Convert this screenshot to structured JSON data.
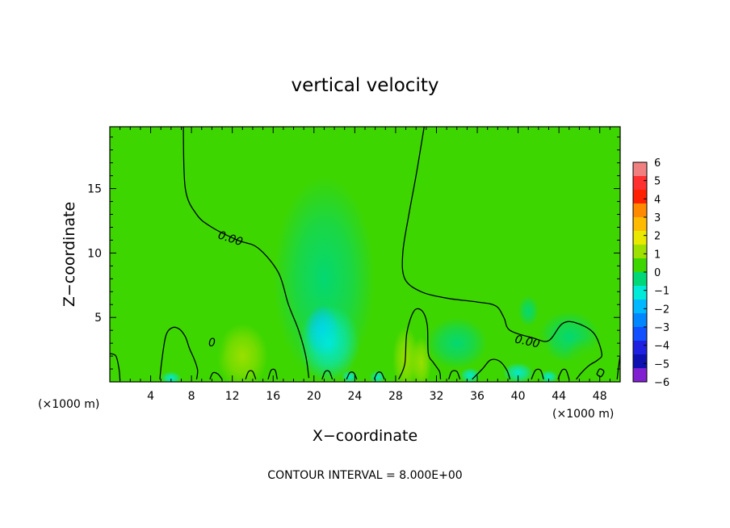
{
  "chart_data": {
    "type": "heatmap",
    "title": "vertical velocity",
    "xlabel": "X−coordinate",
    "ylabel": "Z−coordinate",
    "x_unit": "(×1000 m)",
    "y_unit": "(×1000 m)",
    "xlim": [
      0,
      50
    ],
    "ylim": [
      0,
      19.8
    ],
    "x_ticks": [
      4,
      8,
      12,
      16,
      20,
      24,
      28,
      32,
      36,
      40,
      44,
      48
    ],
    "x_tick_labels": [
      "4",
      "8",
      "12",
      "16",
      "20",
      "24",
      "28",
      "32",
      "36",
      "40",
      "44",
      "48"
    ],
    "y_ticks": [
      5,
      10,
      15
    ],
    "y_tick_labels": [
      "5",
      "10",
      "15"
    ],
    "colorbar": {
      "min": -6,
      "max": 6,
      "labels": [
        "6",
        "5",
        "4",
        "3",
        "2",
        "1",
        "0",
        "−1",
        "−2",
        "−3",
        "−4",
        "−5",
        "−6"
      ],
      "colors": [
        "#f08080",
        "#ff3030",
        "#ff2000",
        "#ff8a00",
        "#ffbb00",
        "#e8e800",
        "#9ee000",
        "#3ed600",
        "#00d878",
        "#00eada",
        "#00b8ff",
        "#0086ff",
        "#1050ff",
        "#2020e0",
        "#1010b0",
        "#8020d0"
      ],
      "note": "color sequence from top (positive) to bottom (negative)"
    },
    "contour_interval_text": "CONTOUR INTERVAL = 8.000E+00",
    "contour_labels": [
      "0.00",
      "0.00",
      "0"
    ],
    "blobs": [
      {
        "x": 16.5,
        "z": 7.5,
        "rx": 5,
        "rz": 4,
        "value": 0.5
      },
      {
        "x": 13,
        "z": 2,
        "rx": 2.5,
        "rz": 2.5,
        "value": 1.3
      },
      {
        "x": 10,
        "z": 3,
        "rx": 1.5,
        "rz": 2,
        "value": 0.7
      },
      {
        "x": 6.5,
        "z": 1,
        "rx": 2,
        "rz": 1.2,
        "value": 0.4
      },
      {
        "x": 29,
        "z": 1.8,
        "rx": 1.3,
        "rz": 2.5,
        "value": 1.0
      },
      {
        "x": 30.5,
        "z": 1.5,
        "rx": 1,
        "rz": 2,
        "value": 0.8
      },
      {
        "x": 16,
        "z": 1,
        "rx": 1,
        "rz": 1.2,
        "value": 0.7
      },
      {
        "x": 21,
        "z": 8,
        "rx": 5,
        "rz": 8,
        "value": -0.6
      },
      {
        "x": 20.8,
        "z": 4,
        "rx": 1.7,
        "rz": 2,
        "value": -1.8
      },
      {
        "x": 21.5,
        "z": 3,
        "rx": 3,
        "rz": 3,
        "value": -0.8
      },
      {
        "x": 41,
        "z": 5.5,
        "rx": 1,
        "rz": 1.2,
        "value": -0.5
      },
      {
        "x": 40,
        "z": 0.7,
        "rx": 1.5,
        "rz": 0.8,
        "value": -1.2
      },
      {
        "x": 34,
        "z": 3,
        "rx": 3,
        "rz": 2,
        "value": -0.4
      },
      {
        "x": 6,
        "z": 0.3,
        "rx": 1,
        "rz": 0.5,
        "value": -1.1
      },
      {
        "x": 23.5,
        "z": 0.4,
        "rx": 0.8,
        "rz": 0.5,
        "value": -1.0
      },
      {
        "x": 26.2,
        "z": 0.4,
        "rx": 0.8,
        "rz": 0.5,
        "value": -1.0
      },
      {
        "x": 35.3,
        "z": 0.5,
        "rx": 1.0,
        "rz": 0.6,
        "value": -1.4
      },
      {
        "x": 43,
        "z": 0.4,
        "rx": 0.9,
        "rz": 0.5,
        "value": -1.1
      },
      {
        "x": 45,
        "z": 3.5,
        "rx": 3,
        "rz": 2,
        "value": -0.35
      },
      {
        "x": 46.5,
        "z": 1.8,
        "rx": 2,
        "rz": 1.6,
        "value": 0.4
      },
      {
        "x": 42,
        "z": 2.5,
        "rx": 1.5,
        "rz": 1.5,
        "value": 0.3
      },
      {
        "x": 25,
        "z": 1.2,
        "rx": 1.5,
        "rz": 1.3,
        "value": 0.3
      },
      {
        "x": 3,
        "z": 1.5,
        "rx": 3,
        "rz": 1.8,
        "value": 0.25
      }
    ],
    "contours": [
      [
        [
          7.2,
          19.8
        ],
        [
          7.4,
          15
        ],
        [
          8.5,
          13
        ],
        [
          10,
          12
        ],
        [
          12.5,
          11
        ],
        [
          14.5,
          10.4
        ],
        [
          16.5,
          8.5
        ],
        [
          17.5,
          6
        ],
        [
          18.5,
          4
        ],
        [
          19.2,
          2
        ],
        [
          19.5,
          0.3
        ]
      ],
      [
        [
          30.8,
          19.8
        ],
        [
          30,
          16
        ],
        [
          29.3,
          13
        ],
        [
          28.7,
          10
        ],
        [
          28.9,
          8
        ],
        [
          30.5,
          7
        ],
        [
          33,
          6.5
        ],
        [
          36,
          6.2
        ],
        [
          37.8,
          5.9
        ],
        [
          38.6,
          5
        ],
        [
          39.2,
          4
        ],
        [
          41.5,
          3.4
        ],
        [
          43,
          3.2
        ],
        [
          44.3,
          4.5
        ],
        [
          45.6,
          4.6
        ],
        [
          47.4,
          3.8
        ],
        [
          48.2,
          2.2
        ],
        [
          47.8,
          1.7
        ],
        [
          47,
          1.3
        ],
        [
          46.2,
          0.7
        ],
        [
          45.7,
          0.2
        ]
      ],
      [
        [
          4.9,
          0.2
        ],
        [
          5.1,
          1.7
        ],
        [
          5.5,
          3.6
        ],
        [
          6.1,
          4.2
        ],
        [
          6.8,
          4.1
        ],
        [
          7.4,
          3.5
        ],
        [
          7.8,
          2.6
        ],
        [
          8.3,
          1.7
        ],
        [
          8.6,
          0.9
        ],
        [
          8.5,
          0.2
        ]
      ],
      [
        [
          0,
          2.2
        ],
        [
          0.6,
          2.0
        ],
        [
          0.9,
          1.0
        ],
        [
          1.0,
          0.1
        ]
      ],
      [
        [
          28.3,
          0.2
        ],
        [
          28.9,
          1.4
        ],
        [
          29.1,
          3.8
        ],
        [
          29.8,
          5.5
        ],
        [
          30.6,
          5.5
        ],
        [
          31.1,
          4.4
        ],
        [
          31.2,
          2.2
        ],
        [
          31.7,
          1.5
        ],
        [
          32.3,
          0.8
        ],
        [
          32.4,
          0.2
        ]
      ],
      [
        [
          35.5,
          0.2
        ],
        [
          36.5,
          1.0
        ],
        [
          37.3,
          1.7
        ],
        [
          38.2,
          1.6
        ],
        [
          38.9,
          0.9
        ],
        [
          39.2,
          0.2
        ]
      ],
      [
        [
          9.8,
          0.2
        ],
        [
          10.1,
          0.7
        ],
        [
          10.6,
          0.6
        ],
        [
          11.0,
          0.2
        ]
      ],
      [
        [
          13.3,
          0.2
        ],
        [
          13.6,
          0.8
        ],
        [
          14.0,
          0.8
        ],
        [
          14.3,
          0.2
        ]
      ],
      [
        [
          15.5,
          0.2
        ],
        [
          15.8,
          0.9
        ],
        [
          16.2,
          0.9
        ],
        [
          16.4,
          0.2
        ]
      ],
      [
        [
          20.8,
          0.2
        ],
        [
          21.1,
          0.8
        ],
        [
          21.5,
          0.8
        ],
        [
          21.8,
          0.2
        ]
      ],
      [
        [
          23.2,
          0.2
        ],
        [
          23.5,
          0.7
        ],
        [
          23.9,
          0.7
        ],
        [
          24.2,
          0.2
        ]
      ],
      [
        [
          25.9,
          0.2
        ],
        [
          26.2,
          0.7
        ],
        [
          26.6,
          0.7
        ],
        [
          26.9,
          0.2
        ]
      ],
      [
        [
          33.2,
          0.2
        ],
        [
          33.5,
          0.8
        ],
        [
          34.0,
          0.8
        ],
        [
          34.3,
          0.2
        ]
      ],
      [
        [
          41.3,
          0.2
        ],
        [
          41.7,
          0.9
        ],
        [
          42.2,
          0.9
        ],
        [
          42.5,
          0.2
        ]
      ],
      [
        [
          43.9,
          0.2
        ],
        [
          44.3,
          0.9
        ],
        [
          44.7,
          0.9
        ],
        [
          45.0,
          0.2
        ]
      ],
      [
        [
          49.7,
          0.2
        ],
        [
          49.9,
          1.5
        ],
        [
          50.0,
          2.0
        ]
      ],
      [
        [
          47.7,
          0.6
        ],
        [
          48.0,
          1.0
        ],
        [
          48.4,
          0.8
        ],
        [
          48.1,
          0.4
        ],
        [
          47.7,
          0.6
        ]
      ]
    ],
    "contour_label_positions": [
      {
        "x": 11.8,
        "z": 11.1,
        "text_index": 0,
        "angle": 18
      },
      {
        "x": 40.9,
        "z": 3.1,
        "text_index": 1,
        "angle": 12
      },
      {
        "x": 10.0,
        "z": 3.0,
        "text_index": 2,
        "angle": 0
      }
    ]
  }
}
